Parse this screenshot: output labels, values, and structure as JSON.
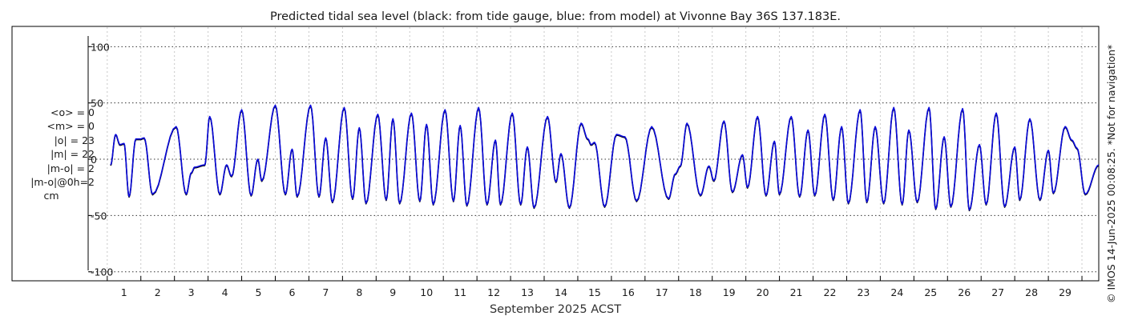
{
  "chart_data": {
    "type": "line",
    "title": "Predicted tidal sea level (black: from tide gauge, blue: from model) at Vivonne Bay 36S 137.183E.",
    "xlabel": "September 2025 ACST",
    "ylabel": "",
    "xlim": [
      0.6,
      30.0
    ],
    "ylim": [
      -108,
      118
    ],
    "y_ticks": [
      100,
      50,
      0,
      -50,
      -100
    ],
    "y_tick_labels": [
      "100",
      "50",
      "0",
      "-50",
      "-100"
    ],
    "x_ticks": [
      1,
      2,
      3,
      4,
      5,
      6,
      7,
      8,
      9,
      10,
      11,
      12,
      13,
      14,
      15,
      16,
      17,
      18,
      19,
      20,
      21,
      22,
      23,
      24,
      25,
      26,
      27,
      28,
      29
    ],
    "x_tick_labels": [
      "1",
      "2",
      "3",
      "4",
      "5",
      "6",
      "7",
      "8",
      "9",
      "10",
      "11",
      "12",
      "13",
      "14",
      "15",
      "16",
      "17",
      "18",
      "19",
      "20",
      "21",
      "22",
      "23",
      "24",
      "25",
      "26",
      "27",
      "28",
      "29"
    ],
    "grid": true,
    "series": [
      {
        "name": "black: from tide gauge",
        "color": "#000000"
      },
      {
        "name": "blue: from model",
        "color": "#0a0adc"
      }
    ],
    "series_extrema": [
      {
        "x": 0.6,
        "y": -5
      },
      {
        "x": 0.75,
        "y": 22
      },
      {
        "x": 0.88,
        "y": 13
      },
      {
        "x": 1.0,
        "y": 14
      },
      {
        "x": 1.15,
        "y": -33
      },
      {
        "x": 1.35,
        "y": 18
      },
      {
        "x": 1.48,
        "y": 18
      },
      {
        "x": 1.6,
        "y": 19
      },
      {
        "x": 1.85,
        "y": -31
      },
      {
        "x": 2.55,
        "y": 29
      },
      {
        "x": 2.85,
        "y": -31
      },
      {
        "x": 3.0,
        "y": -12
      },
      {
        "x": 3.1,
        "y": -7
      },
      {
        "x": 3.4,
        "y": -5
      },
      {
        "x": 3.55,
        "y": 38
      },
      {
        "x": 3.85,
        "y": -31
      },
      {
        "x": 4.05,
        "y": -5
      },
      {
        "x": 4.2,
        "y": -15
      },
      {
        "x": 4.5,
        "y": 44
      },
      {
        "x": 4.78,
        "y": -32
      },
      {
        "x": 4.98,
        "y": 0
      },
      {
        "x": 5.1,
        "y": -19
      },
      {
        "x": 5.5,
        "y": 48
      },
      {
        "x": 5.8,
        "y": -31
      },
      {
        "x": 6.0,
        "y": 9
      },
      {
        "x": 6.15,
        "y": -33
      },
      {
        "x": 6.55,
        "y": 48
      },
      {
        "x": 6.8,
        "y": -33
      },
      {
        "x": 7.0,
        "y": 19
      },
      {
        "x": 7.2,
        "y": -38
      },
      {
        "x": 7.55,
        "y": 46
      },
      {
        "x": 7.8,
        "y": -35
      },
      {
        "x": 8.0,
        "y": 28
      },
      {
        "x": 8.2,
        "y": -39
      },
      {
        "x": 8.55,
        "y": 40
      },
      {
        "x": 8.8,
        "y": -36
      },
      {
        "x": 9.0,
        "y": 36
      },
      {
        "x": 9.2,
        "y": -39
      },
      {
        "x": 9.55,
        "y": 41
      },
      {
        "x": 9.8,
        "y": -37
      },
      {
        "x": 10.0,
        "y": 31
      },
      {
        "x": 10.2,
        "y": -40
      },
      {
        "x": 10.55,
        "y": 44
      },
      {
        "x": 10.8,
        "y": -37
      },
      {
        "x": 11.0,
        "y": 30
      },
      {
        "x": 11.2,
        "y": -41
      },
      {
        "x": 11.55,
        "y": 46
      },
      {
        "x": 11.8,
        "y": -40
      },
      {
        "x": 12.05,
        "y": 17
      },
      {
        "x": 12.2,
        "y": -40
      },
      {
        "x": 12.55,
        "y": 41
      },
      {
        "x": 12.8,
        "y": -40
      },
      {
        "x": 13.0,
        "y": 11
      },
      {
        "x": 13.2,
        "y": -43
      },
      {
        "x": 13.6,
        "y": 38
      },
      {
        "x": 13.85,
        "y": -20
      },
      {
        "x": 14.0,
        "y": 5
      },
      {
        "x": 14.25,
        "y": -43
      },
      {
        "x": 14.6,
        "y": 32
      },
      {
        "x": 14.8,
        "y": 18
      },
      {
        "x": 14.9,
        "y": 13
      },
      {
        "x": 15.0,
        "y": 15
      },
      {
        "x": 15.3,
        "y": -42
      },
      {
        "x": 15.65,
        "y": 22
      },
      {
        "x": 15.9,
        "y": 20
      },
      {
        "x": 16.25,
        "y": -37
      },
      {
        "x": 16.7,
        "y": 29
      },
      {
        "x": 17.2,
        "y": -35
      },
      {
        "x": 17.4,
        "y": -13
      },
      {
        "x": 17.55,
        "y": -6
      },
      {
        "x": 17.75,
        "y": 32
      },
      {
        "x": 18.15,
        "y": -32
      },
      {
        "x": 18.4,
        "y": -6
      },
      {
        "x": 18.55,
        "y": -19
      },
      {
        "x": 18.85,
        "y": 34
      },
      {
        "x": 19.1,
        "y": -29
      },
      {
        "x": 19.4,
        "y": 4
      },
      {
        "x": 19.55,
        "y": -25
      },
      {
        "x": 19.85,
        "y": 38
      },
      {
        "x": 20.1,
        "y": -32
      },
      {
        "x": 20.35,
        "y": 16
      },
      {
        "x": 20.5,
        "y": -31
      },
      {
        "x": 20.85,
        "y": 38
      },
      {
        "x": 21.1,
        "y": -33
      },
      {
        "x": 21.35,
        "y": 26
      },
      {
        "x": 21.55,
        "y": -32
      },
      {
        "x": 21.85,
        "y": 40
      },
      {
        "x": 22.1,
        "y": -36
      },
      {
        "x": 22.35,
        "y": 29
      },
      {
        "x": 22.55,
        "y": -39
      },
      {
        "x": 22.9,
        "y": 44
      },
      {
        "x": 23.1,
        "y": -38
      },
      {
        "x": 23.35,
        "y": 29
      },
      {
        "x": 23.6,
        "y": -39
      },
      {
        "x": 23.9,
        "y": 46
      },
      {
        "x": 24.15,
        "y": -40
      },
      {
        "x": 24.35,
        "y": 26
      },
      {
        "x": 24.6,
        "y": -38
      },
      {
        "x": 24.95,
        "y": 46
      },
      {
        "x": 25.15,
        "y": -44
      },
      {
        "x": 25.4,
        "y": 20
      },
      {
        "x": 25.6,
        "y": -42
      },
      {
        "x": 25.95,
        "y": 45
      },
      {
        "x": 26.15,
        "y": -45
      },
      {
        "x": 26.45,
        "y": 13
      },
      {
        "x": 26.65,
        "y": -40
      },
      {
        "x": 26.95,
        "y": 41
      },
      {
        "x": 27.2,
        "y": -42
      },
      {
        "x": 27.5,
        "y": 11
      },
      {
        "x": 27.65,
        "y": -36
      },
      {
        "x": 27.95,
        "y": 36
      },
      {
        "x": 28.25,
        "y": -36
      },
      {
        "x": 28.5,
        "y": 8
      },
      {
        "x": 28.65,
        "y": -30
      },
      {
        "x": 29.0,
        "y": 29
      },
      {
        "x": 29.2,
        "y": 17
      },
      {
        "x": 29.35,
        "y": 10
      },
      {
        "x": 29.6,
        "y": -31
      },
      {
        "x": 30.0,
        "y": -5
      }
    ]
  },
  "stats": {
    "mean_obs": "<o> = 0",
    "mean_model": "<m> = 0",
    "abs_obs": "|o| = 23",
    "abs_model": "|m| = 22",
    "abs_diff": "|m-o| = 2",
    "abs_diff_0h": "|m-o|@0h=2",
    "unit": "cm"
  },
  "side_note": "© IMOS 14-Jun-2025 00:08:25. *Not for navigation*"
}
